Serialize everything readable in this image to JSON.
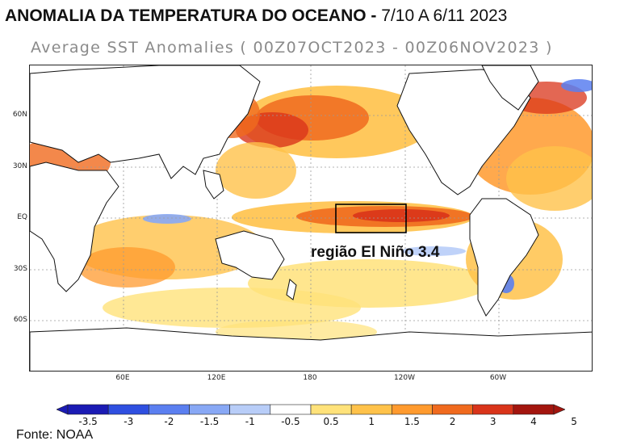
{
  "title": {
    "main": "ANOMALIA DA TEMPERATURA DO OCEANO -",
    "dates": "7/10 A 6/11 2023"
  },
  "subtitle": "Average SST Anomalies ( 00Z07OCT2023 - 00Z06NOV2023 )",
  "map": {
    "lat_labels": [
      "60N",
      "30N",
      "EQ",
      "30S",
      "60S"
    ],
    "lon_labels": [
      "60E",
      "120E",
      "180",
      "120W",
      "60W"
    ],
    "region_label": "região El Niño 3.4",
    "colors": {
      "land": "#ffffff",
      "coast": "#111111",
      "grid": "#9a9a9a"
    }
  },
  "colorbar": {
    "ticks": [
      "-3.5",
      "-3",
      "-2",
      "-1.5",
      "-1",
      "-0.5",
      "0.5",
      "1",
      "1.5",
      "2",
      "3",
      "4",
      "5"
    ],
    "colors": [
      "#1b1bb4",
      "#2f4fe0",
      "#5b7ff0",
      "#88a8f5",
      "#b8cdf8",
      "#ffffff",
      "#ffe27a",
      "#ffc24a",
      "#ff9a2e",
      "#f06a1e",
      "#d9341a",
      "#a3150e"
    ]
  },
  "source": "Fonte: NOAA"
}
